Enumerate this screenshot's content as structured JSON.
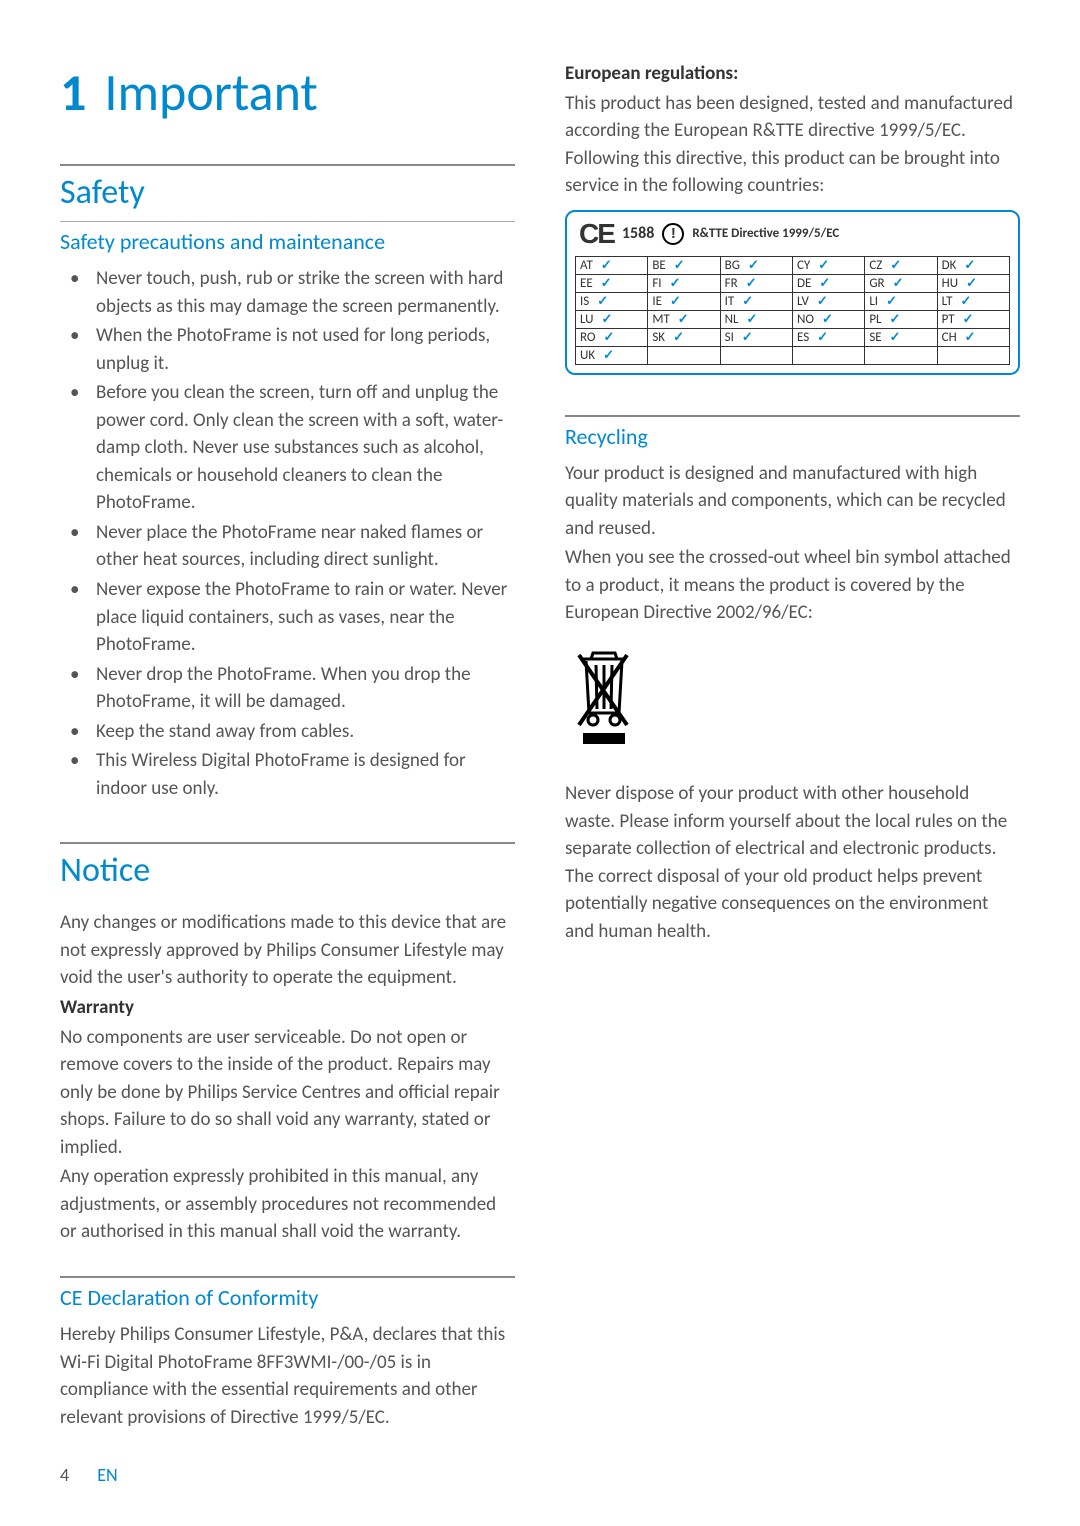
{
  "colors": {
    "accent": "#0089cf",
    "text": "#555555",
    "heading_text": "#333333",
    "rule": "#888888",
    "subrule": "#aaaaaa",
    "background": "#ffffff",
    "table_border": "#333333"
  },
  "typography": {
    "chapter_fontsize": 52,
    "h2_fontsize": 34,
    "h3_fontsize": 22,
    "body_fontsize": 19,
    "table_fontsize": 13,
    "directive_label_fontsize": 13
  },
  "chapter": {
    "number": "1",
    "title": "Important"
  },
  "safety": {
    "heading": "Safety",
    "subheading": "Safety precautions and maintenance",
    "bullets": [
      "Never touch, push, rub or strike the screen with hard objects as this may damage the screen permanently.",
      "When the PhotoFrame is not used for long periods, unplug it.",
      "Before you clean the screen, turn off and unplug the power cord. Only clean the screen with a soft, water-damp cloth. Never use substances such as alcohol, chemicals or household cleaners to clean the PhotoFrame.",
      "Never place the PhotoFrame near naked flames or other heat sources, including direct sunlight.",
      "Never expose the PhotoFrame to rain or water. Never place liquid containers, such as vases, near the PhotoFrame.",
      "Never drop the PhotoFrame. When you drop the PhotoFrame, it will be damaged.",
      "Keep the stand away from cables.",
      "This Wireless Digital PhotoFrame is designed for indoor use only."
    ]
  },
  "notice": {
    "heading": "Notice",
    "intro": "Any changes or modifications made to this device that are not expressly approved by Philips Consumer Lifestyle may void the user's authority to operate the equipment.",
    "warranty_label": "Warranty",
    "warranty_body_1": "No components are user serviceable. Do not open or remove covers to the inside of the product. Repairs may only be done by Philips Service Centres and official repair shops. Failure to do so shall void any warranty, stated or implied.",
    "warranty_body_2": "Any operation expressly prohibited in this manual, any adjustments, or assembly procedures not recommended or authorised in this manual shall void the warranty."
  },
  "ce": {
    "heading": "CE Declaration of Conformity",
    "body_1": "Hereby Philips Consumer Lifestyle, P&A, declares that this Wi-Fi Digital PhotoFrame 8FF3WMI-/00-/05 is in compliance with the essential requirements and other relevant provisions of Directive 1999/5/EC.",
    "reg_label": "European regulations:",
    "body_2": "This product has been designed, tested and manufactured according the European R&TTE directive 1999/5/EC. Following this directive, this product can be brought into service in the following countries:",
    "directive": {
      "ce_mark": "CE",
      "ce_number": "1588",
      "alert_glyph": "!",
      "label": "R&TTE Directive  1999/5/EC"
    },
    "country_table": {
      "columns": 6,
      "check_glyph": "✓",
      "check_color": "#0089cf",
      "rows": [
        [
          "AT",
          "BE",
          "BG",
          "CY",
          "CZ",
          "DK"
        ],
        [
          "EE",
          "FI",
          "FR",
          "DE",
          "GR",
          "HU"
        ],
        [
          "IS",
          "IE",
          "IT",
          "LV",
          "LI",
          "LT"
        ],
        [
          "LU",
          "MT",
          "NL",
          "NO",
          "PL",
          "PT"
        ],
        [
          "RO",
          "SK",
          "SI",
          "ES",
          "SE",
          "CH"
        ],
        [
          "UK",
          "",
          "",
          "",
          "",
          ""
        ]
      ]
    }
  },
  "recycling": {
    "heading": "Recycling",
    "body_1": "Your product is designed and manufactured with high quality materials and components, which can be recycled and reused.",
    "body_2": "When you see the crossed-out wheel bin symbol attached to a product, it means the product is covered by the European Directive 2002/96/EC:",
    "body_3": "Never dispose of your product with other household waste. Please inform yourself about the local rules on the separate collection of electrical and electronic products. The correct disposal of your old product helps prevent potentially negative consequences on the environment and human health."
  },
  "footer": {
    "page_number": "4",
    "language": "EN"
  }
}
